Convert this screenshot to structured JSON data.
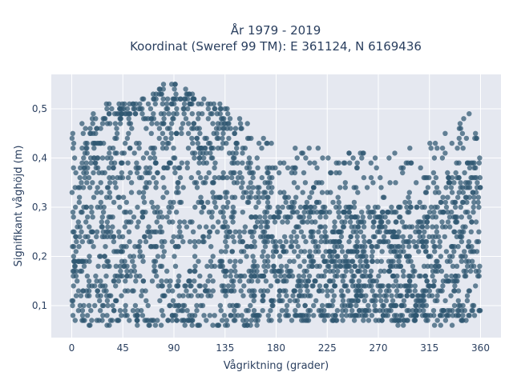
{
  "title_line1": "År 1979 - 2019",
  "title_line2": "Koordinat (Sweref 99 TM): E 361124, N 6169436",
  "chart_data": {
    "type": "scatter",
    "title": "År 1979 - 2019 / Koordinat (Sweref 99 TM): E 361124, N 6169436",
    "xlabel": "Vågriktning (grader)",
    "ylabel": "Signifikant våghöjd (m)",
    "xlim": [
      -18,
      378
    ],
    "ylim": [
      0.035,
      0.57
    ],
    "xticks": [
      0,
      45,
      90,
      135,
      180,
      225,
      270,
      315,
      360
    ],
    "xtick_labels": [
      "0",
      "45",
      "90",
      "135",
      "180",
      "225",
      "270",
      "315",
      "360"
    ],
    "yticks": [
      0.1,
      0.2,
      0.3,
      0.4,
      0.5
    ],
    "ytick_labels": [
      "0,1",
      "0,2",
      "0,3",
      "0,4",
      "0,5"
    ],
    "grid": true,
    "marker_color": "#2e5670",
    "background_color": "#e5e8f0",
    "envelope": {
      "x": [
        0,
        10,
        20,
        30,
        40,
        50,
        60,
        70,
        80,
        90,
        100,
        110,
        120,
        130,
        140,
        150,
        160,
        170,
        180,
        190,
        200,
        210,
        220,
        230,
        240,
        250,
        260,
        270,
        280,
        290,
        300,
        310,
        320,
        330,
        340,
        350,
        360
      ],
      "y_max": [
        0.47,
        0.48,
        0.5,
        0.51,
        0.52,
        0.51,
        0.52,
        0.53,
        0.55,
        0.55,
        0.54,
        0.53,
        0.52,
        0.52,
        0.5,
        0.48,
        0.46,
        0.44,
        0.43,
        0.42,
        0.42,
        0.42,
        0.42,
        0.41,
        0.42,
        0.42,
        0.41,
        0.4,
        0.41,
        0.42,
        0.42,
        0.42,
        0.45,
        0.46,
        0.47,
        0.49,
        0.43
      ],
      "y_min": [
        0.07,
        0.06,
        0.06,
        0.06,
        0.07,
        0.07,
        0.06,
        0.06,
        0.06,
        0.06,
        0.06,
        0.06,
        0.06,
        0.06,
        0.06,
        0.06,
        0.06,
        0.07,
        0.07,
        0.07,
        0.07,
        0.07,
        0.07,
        0.07,
        0.07,
        0.07,
        0.07,
        0.07,
        0.07,
        0.06,
        0.07,
        0.07,
        0.06,
        0.06,
        0.06,
        0.07,
        0.07
      ],
      "dense_upper": [
        0.38,
        0.42,
        0.45,
        0.47,
        0.48,
        0.48,
        0.5,
        0.51,
        0.53,
        0.53,
        0.52,
        0.5,
        0.49,
        0.48,
        0.46,
        0.42,
        0.38,
        0.36,
        0.34,
        0.32,
        0.32,
        0.31,
        0.31,
        0.31,
        0.31,
        0.3,
        0.3,
        0.3,
        0.3,
        0.31,
        0.31,
        0.32,
        0.33,
        0.36,
        0.38,
        0.4,
        0.4
      ],
      "dense_lower": [
        0.09,
        0.08,
        0.08,
        0.08,
        0.08,
        0.08,
        0.08,
        0.08,
        0.08,
        0.08,
        0.08,
        0.08,
        0.08,
        0.08,
        0.08,
        0.08,
        0.08,
        0.08,
        0.08,
        0.08,
        0.08,
        0.08,
        0.08,
        0.08,
        0.08,
        0.08,
        0.08,
        0.08,
        0.08,
        0.08,
        0.08,
        0.08,
        0.08,
        0.08,
        0.08,
        0.08,
        0.09
      ]
    },
    "point_count_rendered": 2600
  }
}
